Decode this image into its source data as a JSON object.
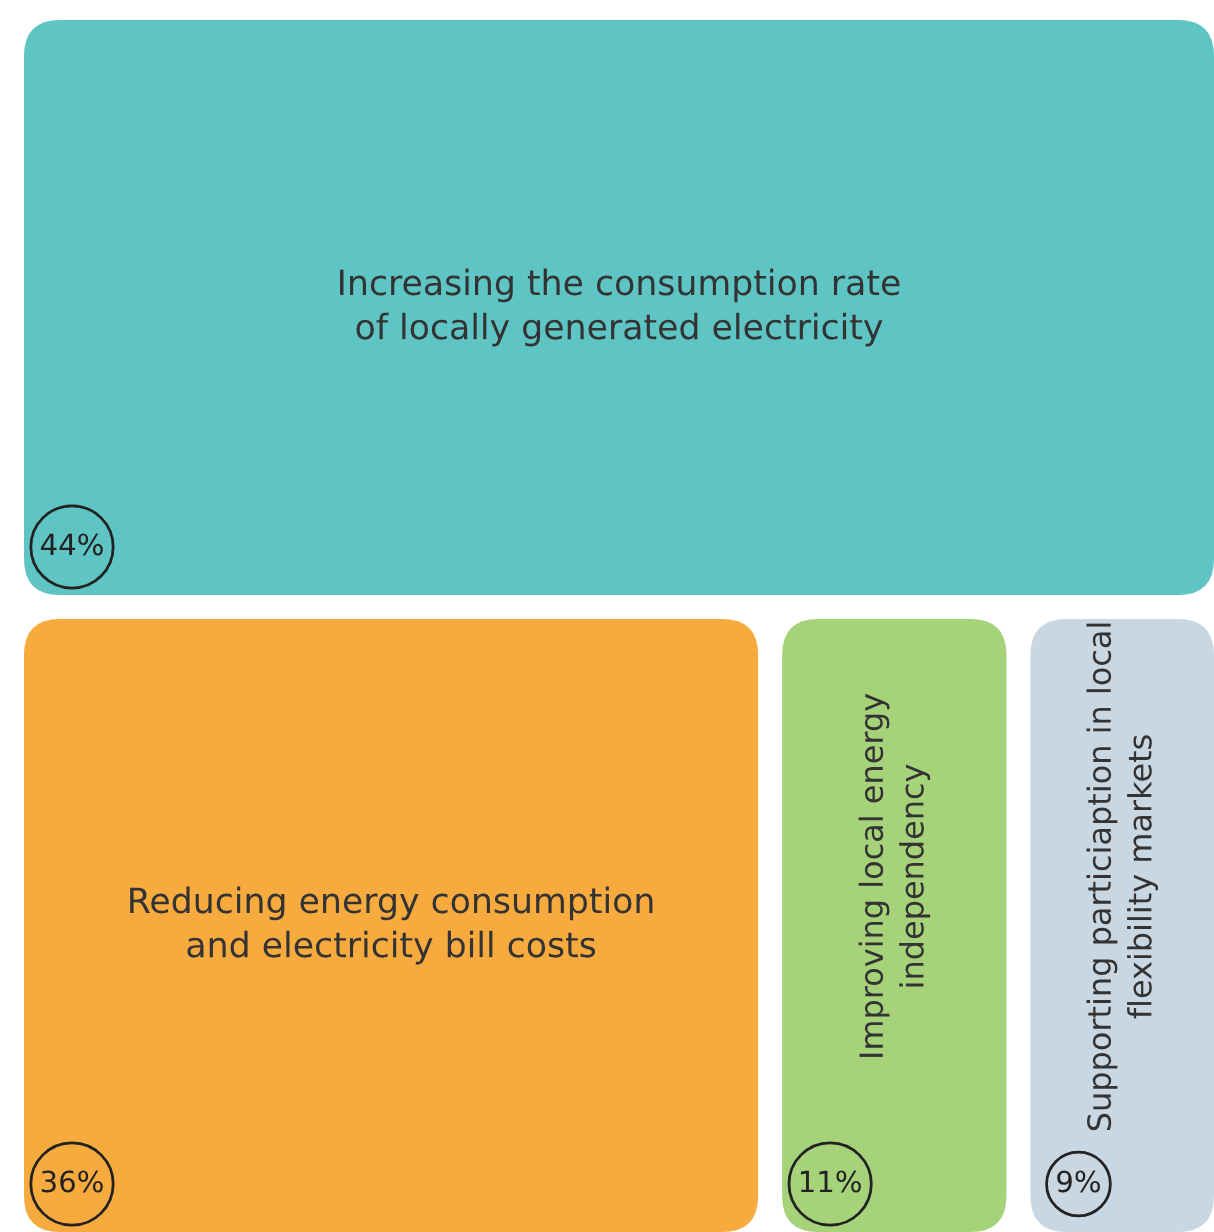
{
  "chart_data": {
    "type": "other",
    "categories": [
      "Increasing the consumption rate\nof locally generated electricity",
      "Reducing energy consumption\nand electricity bill costs",
      "Improving local energy\nindependency",
      "Supporting particiaption in local\nflexibility markets"
    ],
    "values": [
      44,
      36,
      11,
      9
    ],
    "value_labels": [
      "44%",
      "36%",
      "11%",
      "9%"
    ],
    "colors": [
      "#5fc4c4",
      "#f7ab3f",
      "#a6d37a",
      "#c9d7e3"
    ]
  }
}
